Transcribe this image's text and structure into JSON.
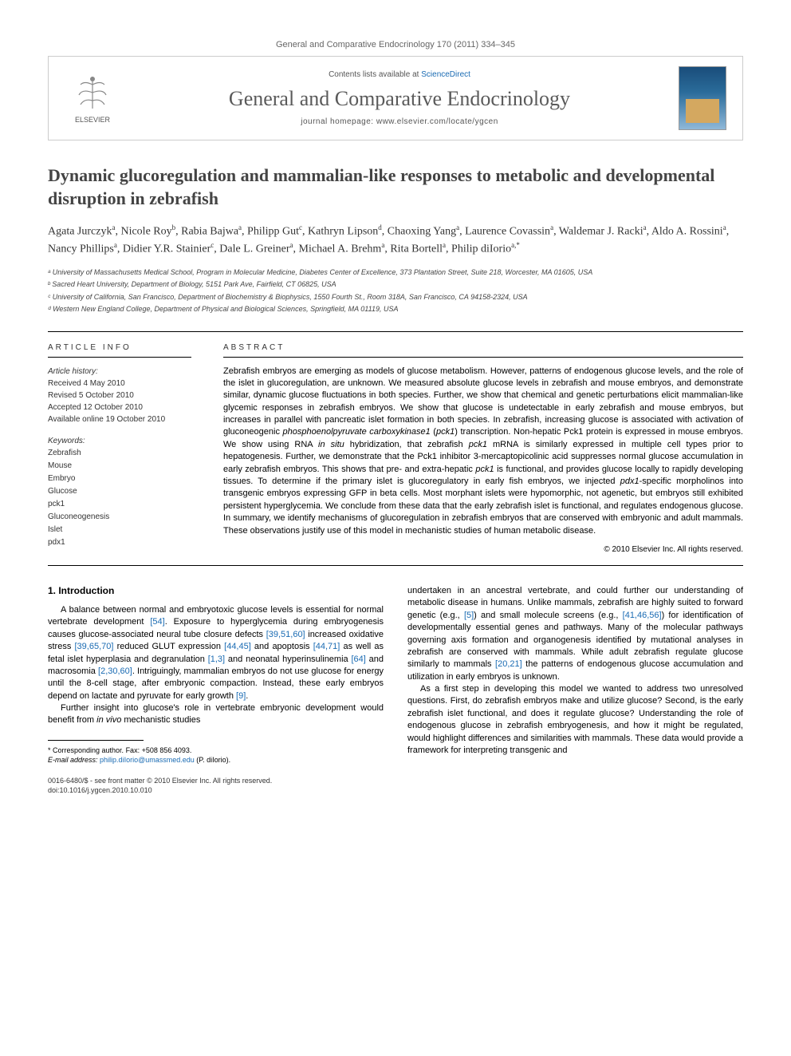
{
  "journal_header": "General and Comparative Endocrinology 170 (2011) 334–345",
  "masthead": {
    "contents_prefix": "Contents lists available at ",
    "contents_link": "ScienceDirect",
    "journal_title": "General and Comparative Endocrinology",
    "homepage_prefix": "journal homepage: ",
    "homepage_url": "www.elsevier.com/locate/ygcen",
    "elsevier": "ELSEVIER"
  },
  "title": "Dynamic glucoregulation and mammalian-like responses to metabolic and developmental disruption in zebrafish",
  "authors_html": "Agata Jurczyk<sup>a</sup>, Nicole Roy<sup>b</sup>, Rabia Bajwa<sup>a</sup>, Philipp Gut<sup>c</sup>, Kathryn Lipson<sup>d</sup>, Chaoxing Yang<sup>a</sup>, Laurence Covassin<sup>a</sup>, Waldemar J. Racki<sup>a</sup>, Aldo A. Rossini<sup>a</sup>, Nancy Phillips<sup>a</sup>, Didier Y.R. Stainier<sup>c</sup>, Dale L. Greiner<sup>a</sup>, Michael A. Brehm<sup>a</sup>, Rita Bortell<sup>a</sup>, Philip diIorio<sup>a,*</sup>",
  "affiliations": [
    "ᵃ University of Massachusetts Medical School, Program in Molecular Medicine, Diabetes Center of Excellence, 373 Plantation Street, Suite 218, Worcester, MA 01605, USA",
    "ᵇ Sacred Heart University, Department of Biology, 5151 Park Ave, Fairfield, CT 06825, USA",
    "ᶜ University of California, San Francisco, Department of Biochemistry & Biophysics, 1550 Fourth St., Room 318A, San Francisco, CA 94158-2324, USA",
    "ᵈ Western New England College, Department of Physical and Biological Sciences, Springfield, MA 01119, USA"
  ],
  "info": {
    "label": "ARTICLE INFO",
    "history_label": "Article history:",
    "history": [
      "Received 4 May 2010",
      "Revised 5 October 2010",
      "Accepted 12 October 2010",
      "Available online 19 October 2010"
    ],
    "keywords_label": "Keywords:",
    "keywords": [
      "Zebrafish",
      "Mouse",
      "Embryo",
      "Glucose",
      "pck1",
      "Gluconeogenesis",
      "Islet",
      "pdx1"
    ]
  },
  "abstract": {
    "label": "ABSTRACT",
    "text": "Zebrafish embryos are emerging as models of glucose metabolism. However, patterns of endogenous glucose levels, and the role of the islet in glucoregulation, are unknown. We measured absolute glucose levels in zebrafish and mouse embryos, and demonstrate similar, dynamic glucose fluctuations in both species. Further, we show that chemical and genetic perturbations elicit mammalian-like glycemic responses in zebrafish embryos. We show that glucose is undetectable in early zebrafish and mouse embryos, but increases in parallel with pancreatic islet formation in both species. In zebrafish, increasing glucose is associated with activation of gluconeogenic phosphoenolpyruvate carboxykinase1 (pck1) transcription. Non-hepatic Pck1 protein is expressed in mouse embryos. We show using RNA in situ hybridization, that zebrafish pck1 mRNA is similarly expressed in multiple cell types prior to hepatogenesis. Further, we demonstrate that the Pck1 inhibitor 3-mercaptopicolinic acid suppresses normal glucose accumulation in early zebrafish embryos. This shows that pre- and extra-hepatic pck1 is functional, and provides glucose locally to rapidly developing tissues. To determine if the primary islet is glucoregulatory in early fish embryos, we injected pdx1-specific morpholinos into transgenic embryos expressing GFP in beta cells. Most morphant islets were hypomorphic, not agenetic, but embryos still exhibited persistent hyperglycemia. We conclude from these data that the early zebrafish islet is functional, and regulates endogenous glucose. In summary, we identify mechanisms of glucoregulation in zebrafish embryos that are conserved with embryonic and adult mammals. These observations justify use of this model in mechanistic studies of human metabolic disease.",
    "copyright": "© 2010 Elsevier Inc. All rights reserved."
  },
  "intro": {
    "heading": "1. Introduction",
    "col1": [
      "A balance between normal and embryotoxic glucose levels is essential for normal vertebrate development [54]. Exposure to hyperglycemia during embryogenesis causes glucose-associated neural tube closure defects [39,51,60] increased oxidative stress [39,65,70] reduced GLUT expression [44,45] and apoptosis [44,71] as well as fetal islet hyperplasia and degranulation [1,3] and neonatal hyperinsulinemia [64] and macrosomia [2,30,60]. Intriguingly, mammalian embryos do not use glucose for energy until the 8-cell stage, after embryonic compaction. Instead, these early embryos depend on lactate and pyruvate for early growth [9].",
      "Further insight into glucose's role in vertebrate embryonic development would benefit from in vivo mechanistic studies"
    ],
    "col2": [
      "undertaken in an ancestral vertebrate, and could further our understanding of metabolic disease in humans. Unlike mammals, zebrafish are highly suited to forward genetic (e.g., [5]) and small molecule screens (e.g., [41,46,56]) for identification of developmentally essential genes and pathways. Many of the molecular pathways governing axis formation and organogenesis identified by mutational analyses in zebrafish are conserved with mammals. While adult zebrafish regulate glucose similarly to mammals [20,21] the patterns of endogenous glucose accumulation and utilization in early embryos is unknown.",
      "As a first step in developing this model we wanted to address two unresolved questions. First, do zebrafish embryos make and utilize glucose? Second, is the early zebrafish islet functional, and does it regulate glucose? Understanding the role of endogenous glucose in zebrafish embryogenesis, and how it might be regulated, would highlight differences and similarities with mammals. These data would provide a framework for interpreting transgenic and"
    ]
  },
  "corr": {
    "line1": "* Corresponding author. Fax: +508 856 4093.",
    "email_label": "E-mail address:",
    "email": "philip.diIorio@umassmed.edu",
    "email_suffix": "(P. diIorio)."
  },
  "footer": {
    "line1": "0016-6480/$ - see front matter © 2010 Elsevier Inc. All rights reserved.",
    "line2": "doi:10.1016/j.ygcen.2010.10.010"
  },
  "colors": {
    "link": "#1a6bb3",
    "text": "#000000",
    "muted": "#666666",
    "title_gray": "#444444"
  }
}
